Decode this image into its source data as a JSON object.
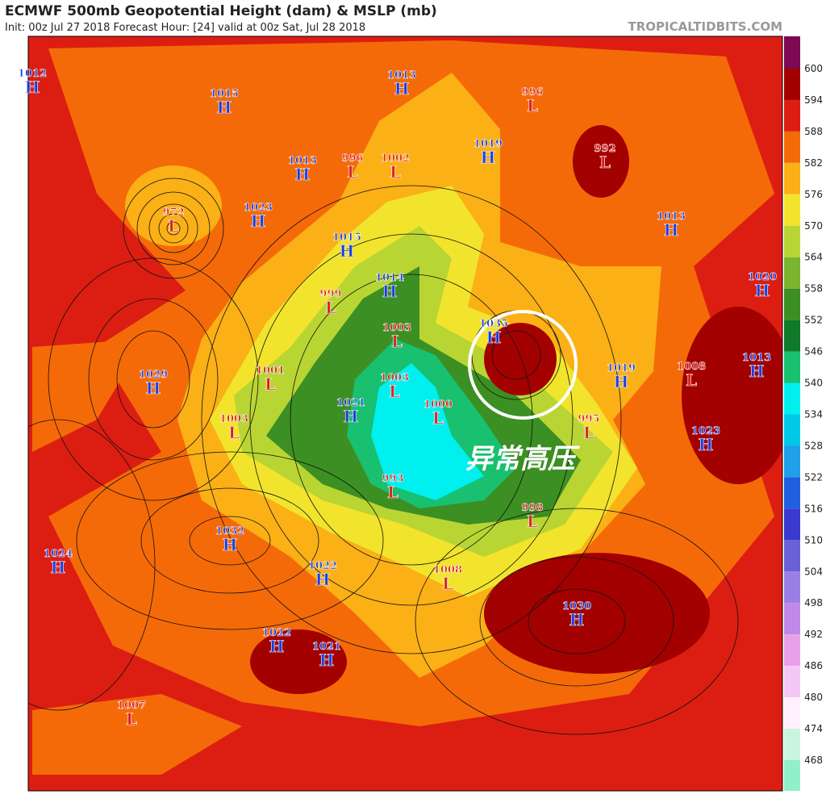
{
  "header": {
    "title": "ECMWF 500mb Geopotential Height (dam) & MSLP (mb)",
    "subtitle": "Init: 00z Jul 27 2018   Forecast Hour: [24]   valid at 00z Sat, Jul 28 2018",
    "site": "TROPICALTIDBITS.COM"
  },
  "colorbar": {
    "ticks": [
      600,
      594,
      588,
      582,
      576,
      570,
      564,
      558,
      552,
      546,
      540,
      534,
      528,
      522,
      516,
      510,
      504,
      498,
      492,
      486,
      480,
      474,
      468
    ],
    "colors": [
      "#7d0a52",
      "#a30000",
      "#dc1e12",
      "#f56a08",
      "#fbb016",
      "#f2e42c",
      "#b9d534",
      "#7bb42e",
      "#3c8f22",
      "#0f7a2a",
      "#18c070",
      "#00f0f0",
      "#00c8e8",
      "#1fa0e8",
      "#2060e0",
      "#3a3ad0",
      "#6a60d8",
      "#9a80e4",
      "#c088e8",
      "#e8a0e8",
      "#f4c8f4",
      "#fff0fb",
      "#c8f4e0",
      "#90f0c8"
    ]
  },
  "pressure_centers": [
    {
      "type": "H",
      "value": "1012"
    },
    {
      "type": "H",
      "value": "1015"
    },
    {
      "type": "H",
      "value": "1013"
    },
    {
      "type": "L",
      "value": "996"
    },
    {
      "type": "L",
      "value": "1002"
    },
    {
      "type": "H",
      "value": "1013"
    },
    {
      "type": "L",
      "value": "996"
    },
    {
      "type": "L",
      "value": "992"
    },
    {
      "type": "H",
      "value": "1019"
    },
    {
      "type": "H",
      "value": "1023"
    },
    {
      "type": "L",
      "value": "972"
    },
    {
      "type": "H",
      "value": "1015"
    },
    {
      "type": "H",
      "value": "1014"
    },
    {
      "type": "L",
      "value": "999"
    },
    {
      "type": "L",
      "value": "1003"
    },
    {
      "type": "H",
      "value": "1035"
    },
    {
      "type": "H",
      "value": "1013"
    },
    {
      "type": "H",
      "value": "1020"
    },
    {
      "type": "H",
      "value": "1013"
    },
    {
      "type": "L",
      "value": "1008"
    },
    {
      "type": "H",
      "value": "1019"
    },
    {
      "type": "H",
      "value": "1029"
    },
    {
      "type": "L",
      "value": "1001"
    },
    {
      "type": "L",
      "value": "1003"
    },
    {
      "type": "H",
      "value": "1021"
    },
    {
      "type": "L",
      "value": "1003"
    },
    {
      "type": "L",
      "value": "1000"
    },
    {
      "type": "L",
      "value": "995"
    },
    {
      "type": "H",
      "value": "1023"
    },
    {
      "type": "L",
      "value": "993"
    },
    {
      "type": "L",
      "value": "998"
    },
    {
      "type": "H",
      "value": "1032"
    },
    {
      "type": "H",
      "value": "1024"
    },
    {
      "type": "H",
      "value": "1022"
    },
    {
      "type": "L",
      "value": "1008"
    },
    {
      "type": "H",
      "value": "1030"
    },
    {
      "type": "H",
      "value": "1022"
    },
    {
      "type": "H",
      "value": "1021"
    },
    {
      "type": "L",
      "value": "1007"
    }
  ],
  "annotation": "异常高压"
}
